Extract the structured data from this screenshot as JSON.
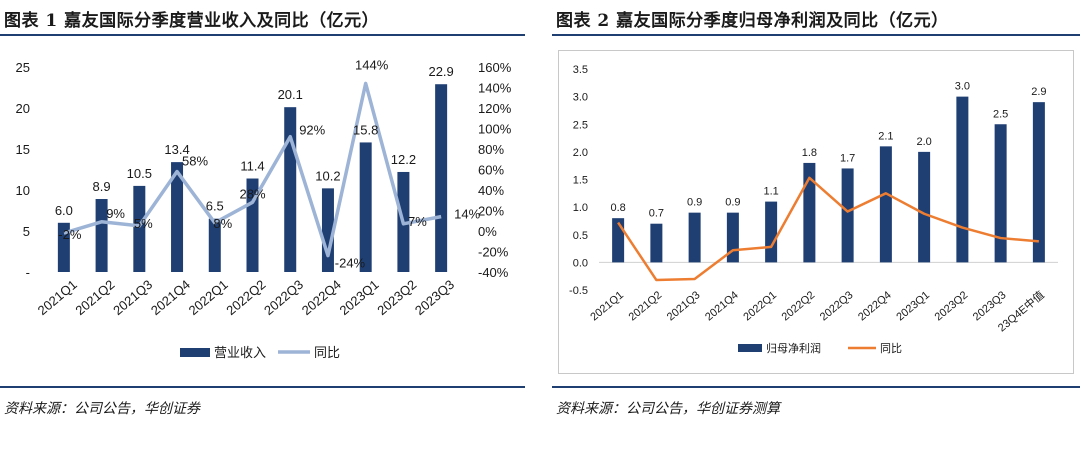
{
  "left": {
    "title": "图表 1   嘉友国际分季度营业收入及同比（亿元）",
    "source": "资料来源：公司公告，华创证券",
    "chart_data": {
      "type": "bar",
      "categories": [
        "2021Q1",
        "2021Q2",
        "2021Q3",
        "2021Q4",
        "2022Q1",
        "2022Q2",
        "2022Q3",
        "2022Q4",
        "2023Q1",
        "2023Q2",
        "2023Q3"
      ],
      "series": [
        {
          "name": "营业收入",
          "type": "bar",
          "axis": "left",
          "color": "#1f3f73",
          "values": [
            6.0,
            8.9,
            10.5,
            13.4,
            6.5,
            11.4,
            20.1,
            10.2,
            15.8,
            12.2,
            22.9
          ],
          "labels": [
            "6.0",
            "8.9",
            "10.5",
            "13.4",
            "6.5",
            "11.4",
            "20.1",
            "10.2",
            "15.8",
            "12.2",
            "22.9"
          ]
        },
        {
          "name": "同比",
          "type": "line",
          "axis": "right",
          "color": "#9db4d6",
          "values": [
            -2,
            9,
            5,
            58,
            8,
            28,
            92,
            -24,
            144,
            7,
            14
          ],
          "labels": [
            "-2%",
            "9%",
            "5%",
            "58%",
            "8%",
            "28%",
            "92%",
            "-24%",
            "144%",
            "7%",
            "14%"
          ]
        }
      ],
      "y_left": {
        "range": [
          0,
          25
        ],
        "ticks": [
          "-",
          "5",
          "10",
          "15",
          "20",
          "25"
        ]
      },
      "y_right": {
        "range": [
          -40,
          160
        ],
        "ticks": [
          "-40%",
          "-20%",
          "0%",
          "20%",
          "40%",
          "60%",
          "80%",
          "100%",
          "120%",
          "140%",
          "160%"
        ]
      },
      "legend": [
        "营业收入",
        "同比"
      ]
    }
  },
  "right": {
    "title": "图表 2   嘉友国际分季度归母净利润及同比（亿元）",
    "source": "资料来源：公司公告，华创证券测算",
    "chart_data": {
      "type": "bar",
      "categories": [
        "2021Q1",
        "2021Q2",
        "2021Q3",
        "2021Q4",
        "2022Q1",
        "2022Q2",
        "2022Q3",
        "2022Q4",
        "2023Q1",
        "2023Q2",
        "2023Q3",
        "23Q4E中值"
      ],
      "series": [
        {
          "name": "归母净利润",
          "type": "bar",
          "axis": "left",
          "color": "#1f3f73",
          "values": [
            0.8,
            0.7,
            0.9,
            0.9,
            1.1,
            1.8,
            1.7,
            2.1,
            2.0,
            3.0,
            2.5,
            2.9
          ],
          "labels": [
            "0.8",
            "0.7",
            "0.9",
            "0.9",
            "1.1",
            "1.8",
            "1.7",
            "2.1",
            "2.0",
            "3.0",
            "2.5",
            "2.9"
          ]
        },
        {
          "name": "同比",
          "type": "line",
          "axis": "left",
          "color": "#ed7d31",
          "values": [
            0.72,
            -0.32,
            -0.3,
            0.22,
            0.28,
            1.53,
            0.92,
            1.25,
            0.88,
            0.63,
            0.44,
            0.38
          ]
        }
      ],
      "y_left": {
        "range": [
          -0.5,
          3.5
        ],
        "ticks": [
          "-0.5",
          "0.0",
          "0.5",
          "1.0",
          "1.5",
          "2.0",
          "2.5",
          "3.0",
          "3.5"
        ]
      },
      "legend": [
        "归母净利润",
        "同比"
      ]
    }
  }
}
